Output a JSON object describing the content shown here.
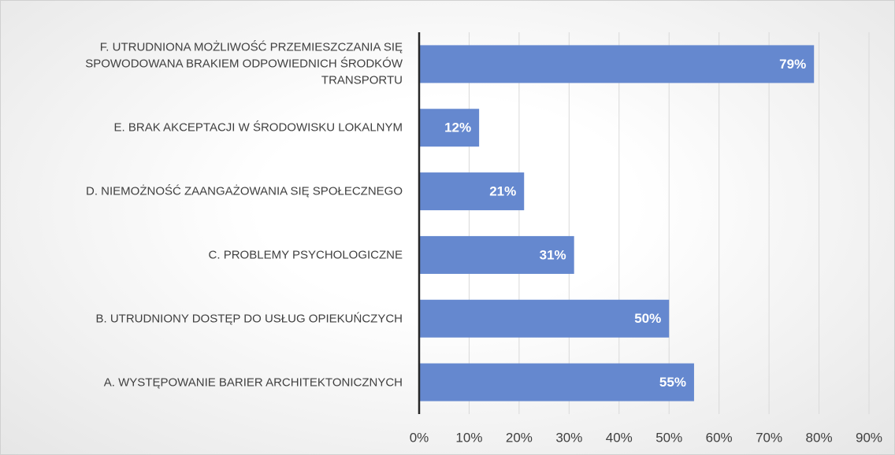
{
  "chart_data": {
    "type": "bar",
    "orientation": "horizontal",
    "categories": [
      "F. UTRUDNIONA MOŻLIWOŚĆ PRZEMIESZCZANIA SIĘ SPOWODOWANA BRAKIEM ODPOWIEDNICH ŚRODKÓW TRANSPORTU",
      "E. BRAK AKCEPTACJI W ŚRODOWISKU LOKALNYM",
      "D. NIEMOŻNOŚĆ ZAANGAŻOWANIA SIĘ SPOŁECZNEGO",
      "C. PROBLEMY PSYCHOLOGICZNE",
      "B. UTRUDNIONY DOSTĘP DO USŁUG OPIEKUŃCZYCH",
      "A. WYSTĘPOWANIE BARIER ARCHITEKTONICZNYCH"
    ],
    "values": [
      79,
      12,
      21,
      31,
      50,
      55
    ],
    "value_labels": [
      "79%",
      "12%",
      "21%",
      "31%",
      "50%",
      "55%"
    ],
    "color": "#6588cf",
    "xlim": [
      0,
      90
    ],
    "xticks": [
      {
        "value": 0,
        "label": "0%"
      },
      {
        "value": 10,
        "label": "10%"
      },
      {
        "value": 20,
        "label": "20%"
      },
      {
        "value": 30,
        "label": "30%"
      },
      {
        "value": 40,
        "label": "40%"
      },
      {
        "value": 50,
        "label": "50%"
      },
      {
        "value": 60,
        "label": "60%"
      },
      {
        "value": 70,
        "label": "70%"
      },
      {
        "value": 80,
        "label": "80%"
      },
      {
        "value": 90,
        "label": "90%"
      }
    ],
    "grid": true
  }
}
